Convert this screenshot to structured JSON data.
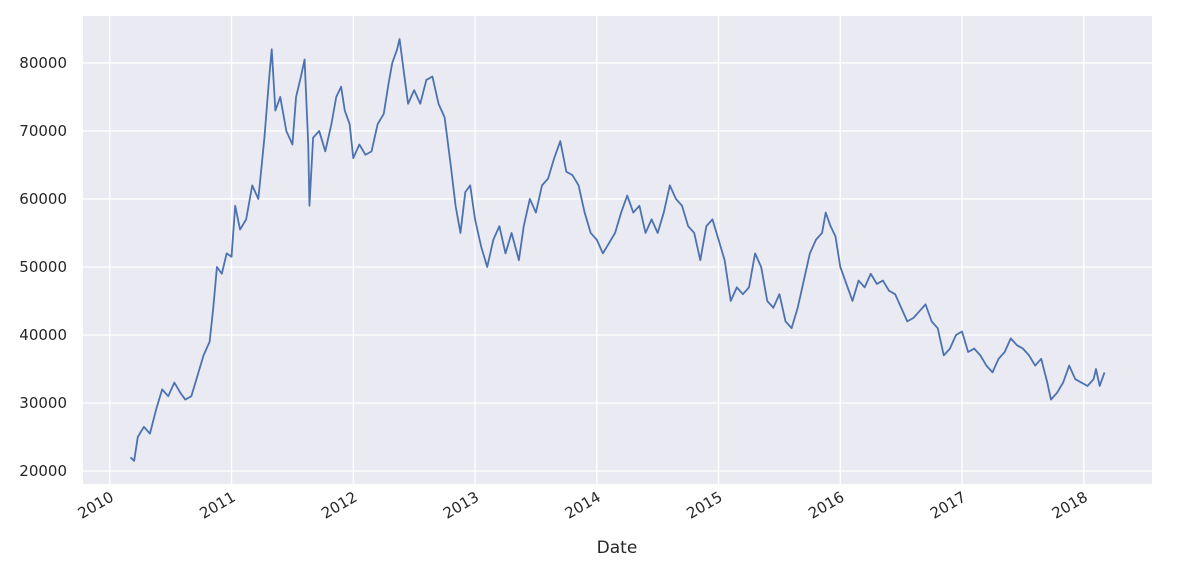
{
  "chart_data": {
    "type": "line",
    "x_label": "Date",
    "xlim": [
      2009.78,
      2018.56
    ],
    "ylim": [
      18090,
      86900
    ],
    "xticks": [
      2010,
      2011,
      2012,
      2013,
      2014,
      2015,
      2016,
      2017,
      2018
    ],
    "yticks": [
      20000,
      30000,
      40000,
      50000,
      60000,
      70000,
      80000
    ],
    "grid": true,
    "series": [
      {
        "color": "#4c72b0",
        "x": [
          2010.17,
          2010.2,
          2010.23,
          2010.28,
          2010.33,
          2010.38,
          2010.43,
          2010.48,
          2010.53,
          2010.58,
          2010.62,
          2010.67,
          2010.72,
          2010.77,
          2010.82,
          2010.85,
          2010.88,
          2010.92,
          2010.96,
          2011.0,
          2011.03,
          2011.07,
          2011.12,
          2011.17,
          2011.22,
          2011.27,
          2011.31,
          2011.33,
          2011.36,
          2011.4,
          2011.45,
          2011.5,
          2011.53,
          2011.57,
          2011.6,
          2011.63,
          2011.64,
          2011.67,
          2011.72,
          2011.77,
          2011.82,
          2011.86,
          2011.9,
          2011.93,
          2011.97,
          2012.0,
          2012.05,
          2012.1,
          2012.15,
          2012.2,
          2012.25,
          2012.29,
          2012.32,
          2012.36,
          2012.38,
          2012.42,
          2012.45,
          2012.5,
          2012.55,
          2012.6,
          2012.65,
          2012.7,
          2012.75,
          2012.8,
          2012.84,
          2012.88,
          2012.92,
          2012.96,
          2013.0,
          2013.05,
          2013.1,
          2013.15,
          2013.2,
          2013.25,
          2013.3,
          2013.36,
          2013.4,
          2013.45,
          2013.5,
          2013.55,
          2013.6,
          2013.65,
          2013.7,
          2013.75,
          2013.8,
          2013.85,
          2013.9,
          2013.95,
          2014.0,
          2014.05,
          2014.1,
          2014.15,
          2014.2,
          2014.25,
          2014.3,
          2014.35,
          2014.4,
          2014.45,
          2014.5,
          2014.55,
          2014.6,
          2014.65,
          2014.7,
          2014.75,
          2014.8,
          2014.85,
          2014.9,
          2014.95,
          2015.0,
          2015.05,
          2015.1,
          2015.15,
          2015.2,
          2015.25,
          2015.3,
          2015.35,
          2015.4,
          2015.45,
          2015.5,
          2015.55,
          2015.6,
          2015.65,
          2015.7,
          2015.75,
          2015.8,
          2015.85,
          2015.88,
          2015.92,
          2015.96,
          2016.0,
          2016.05,
          2016.1,
          2016.15,
          2016.2,
          2016.25,
          2016.3,
          2016.35,
          2016.4,
          2016.45,
          2016.5,
          2016.55,
          2016.6,
          2016.65,
          2016.7,
          2016.75,
          2016.8,
          2016.85,
          2016.9,
          2016.95,
          2017.0,
          2017.05,
          2017.1,
          2017.15,
          2017.2,
          2017.25,
          2017.3,
          2017.35,
          2017.4,
          2017.45,
          2017.5,
          2017.55,
          2017.6,
          2017.65,
          2017.7,
          2017.73,
          2017.78,
          2017.83,
          2017.88,
          2017.93,
          2017.98,
          2018.03,
          2018.08,
          2018.1,
          2018.13,
          2018.17
        ],
        "values": [
          22000,
          21500,
          25000,
          26500,
          25500,
          29000,
          32000,
          31000,
          33000,
          31500,
          30500,
          31000,
          34000,
          37000,
          39000,
          44000,
          50000,
          49000,
          52000,
          51500,
          59000,
          55500,
          57000,
          62000,
          60000,
          69000,
          78000,
          82000,
          73000,
          75000,
          70000,
          68000,
          75000,
          78000,
          80500,
          68000,
          59000,
          69000,
          70000,
          67000,
          71000,
          75000,
          76500,
          73000,
          71000,
          66000,
          68000,
          66500,
          67000,
          71000,
          72500,
          77000,
          80000,
          82000,
          83500,
          78000,
          74000,
          76000,
          74000,
          77500,
          78000,
          74000,
          72000,
          65000,
          59000,
          55000,
          61000,
          62000,
          57000,
          53000,
          50000,
          54000,
          56000,
          52000,
          55000,
          51000,
          56000,
          60000,
          58000,
          62000,
          63000,
          66000,
          68500,
          64000,
          63500,
          62000,
          58000,
          55000,
          54000,
          52000,
          53500,
          55000,
          58000,
          60500,
          58000,
          59000,
          55000,
          57000,
          55000,
          58000,
          62000,
          60000,
          59000,
          56000,
          55000,
          51000,
          56000,
          57000,
          54000,
          51000,
          45000,
          47000,
          46000,
          47000,
          52000,
          50000,
          45000,
          44000,
          46000,
          42000,
          41000,
          44000,
          48000,
          52000,
          54000,
          55000,
          58000,
          56000,
          54500,
          50000,
          47500,
          45000,
          48000,
          47000,
          49000,
          47500,
          48000,
          46500,
          46000,
          44000,
          42000,
          42500,
          43500,
          44500,
          42000,
          41000,
          37000,
          38000,
          40000,
          40500,
          37500,
          38000,
          37000,
          35500,
          34500,
          36500,
          37500,
          39500,
          38500,
          38000,
          37000,
          35500,
          36500,
          33000,
          30500,
          31500,
          33000,
          35500,
          33500,
          33000,
          32500,
          33500,
          35000,
          32500,
          34500
        ]
      }
    ]
  }
}
